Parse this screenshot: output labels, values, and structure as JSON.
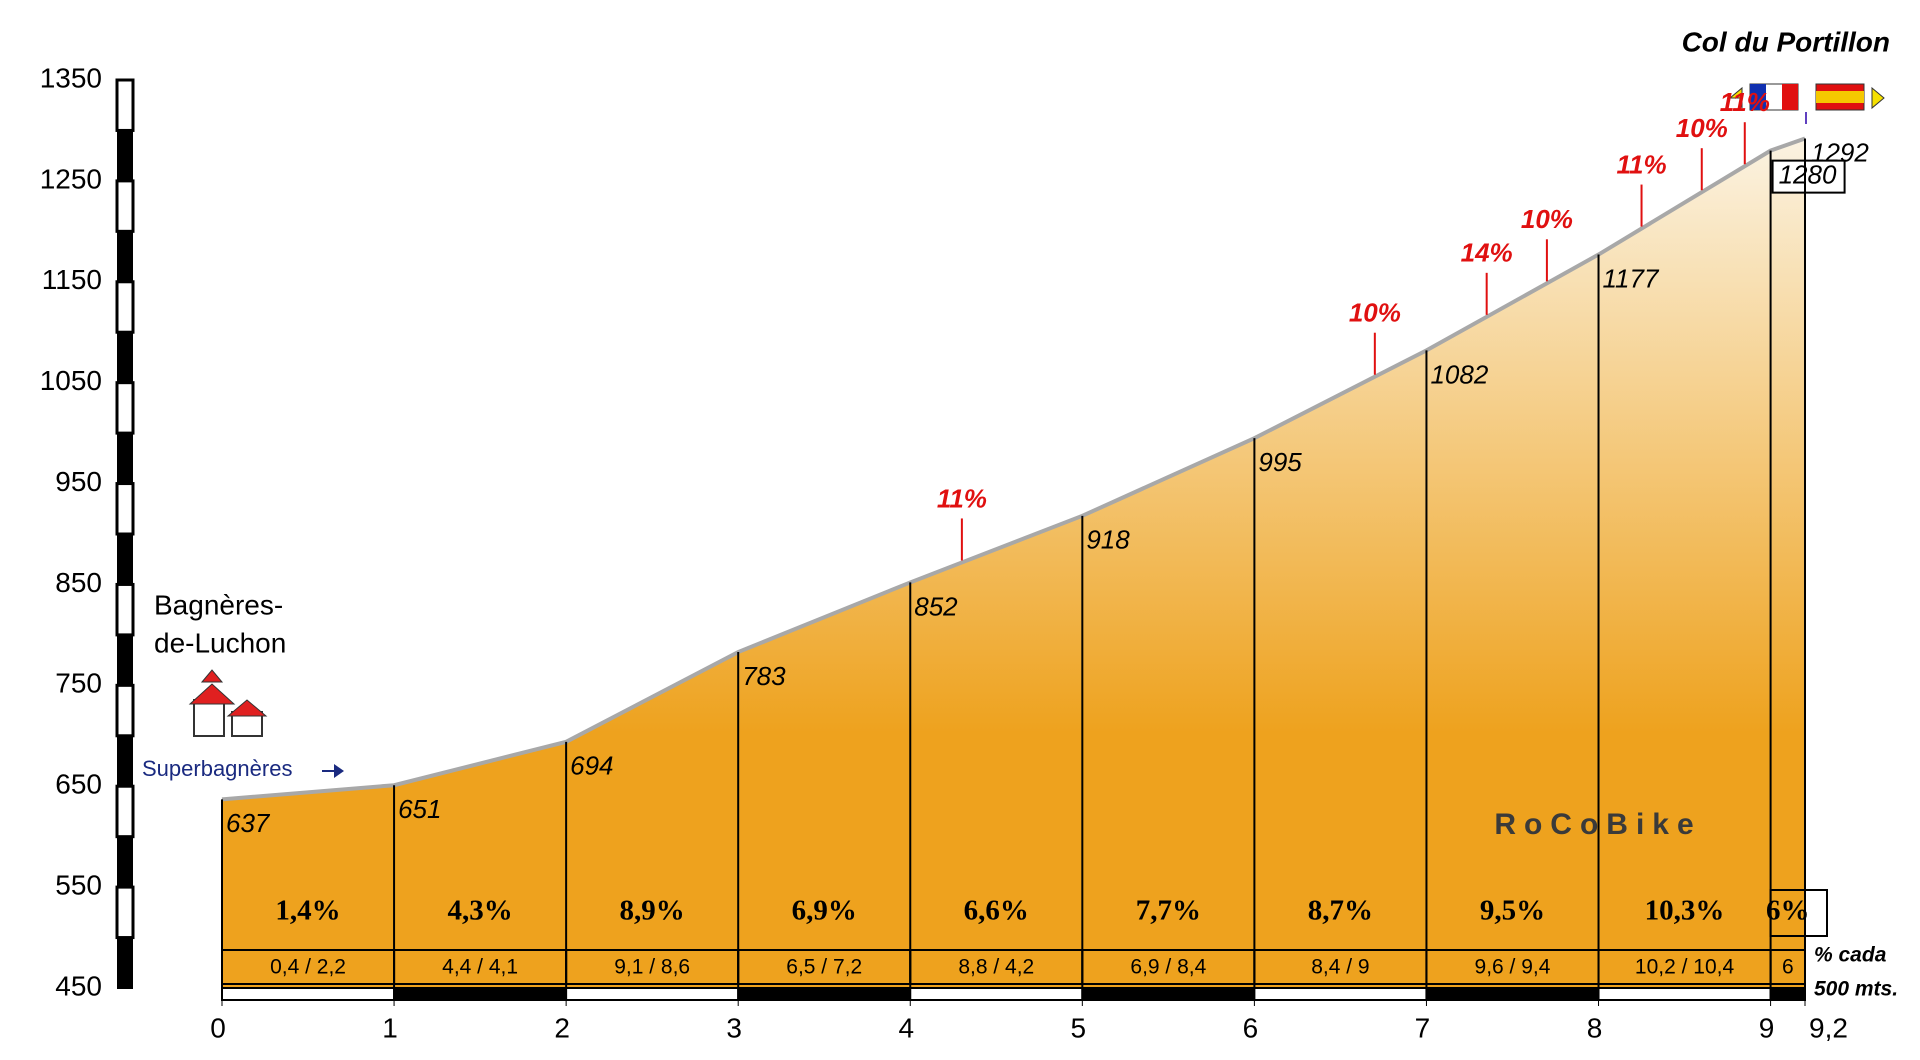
{
  "chart_data": {
    "type": "profile",
    "title": "Col du Portillon",
    "start_label": [
      "Bagnères-",
      "de-Luchon"
    ],
    "side_label": "Superbagnères",
    "x": [
      0,
      1,
      2,
      3,
      4,
      5,
      6,
      7,
      8,
      9,
      9.2
    ],
    "values": [
      637,
      651,
      694,
      783,
      852,
      918,
      995,
      1082,
      1177,
      1280,
      1292
    ],
    "xlim": [
      0,
      9.2
    ],
    "xticks": [
      0,
      1,
      2,
      3,
      4,
      5,
      6,
      7,
      8,
      9,
      {
        "value": 9.2,
        "label": "9,2"
      }
    ],
    "ylim": [
      450,
      1350
    ],
    "yticks": [
      450,
      550,
      650,
      750,
      850,
      950,
      1050,
      1150,
      1250,
      1350
    ],
    "segment_grades": [
      1.4,
      4.3,
      8.9,
      6.9,
      6.6,
      7.7,
      8.7,
      9.5,
      10.3,
      6
    ],
    "segment_grade_labels": [
      "1,4%",
      "4,3%",
      "8,9%",
      "6,9%",
      "6,6%",
      "7,7%",
      "8,7%",
      "9,5%",
      "10,3%",
      "6%"
    ],
    "half_km_grades": [
      "0,4 / 2,2",
      "4,4 / 4,1",
      "9,1 / 8,6",
      "6,5 / 7,2",
      "8,8 / 4,2",
      "6,9 / 8,4",
      "8,4 / 9",
      "9,6 / 9,4",
      "10,2 / 10,4",
      "6"
    ],
    "half_km_legend": [
      "% cada",
      "500 mts."
    ],
    "max_grades": [
      {
        "x": 4.3,
        "value": 11,
        "label": "11%"
      },
      {
        "x": 6.7,
        "value": 10,
        "label": "10%"
      },
      {
        "x": 7.35,
        "value": 14,
        "label": "14%"
      },
      {
        "x": 7.7,
        "value": 10,
        "label": "10%"
      },
      {
        "x": 8.25,
        "value": 11,
        "label": "11%"
      },
      {
        "x": 8.6,
        "value": 10,
        "label": "10%"
      },
      {
        "x": 8.85,
        "value": 11,
        "label": "11%"
      }
    ],
    "logo": "RoCoBike",
    "color_top": "#fbf3e2",
    "color_bottom": "#eea21e",
    "line_color": "#a8a8a8"
  }
}
